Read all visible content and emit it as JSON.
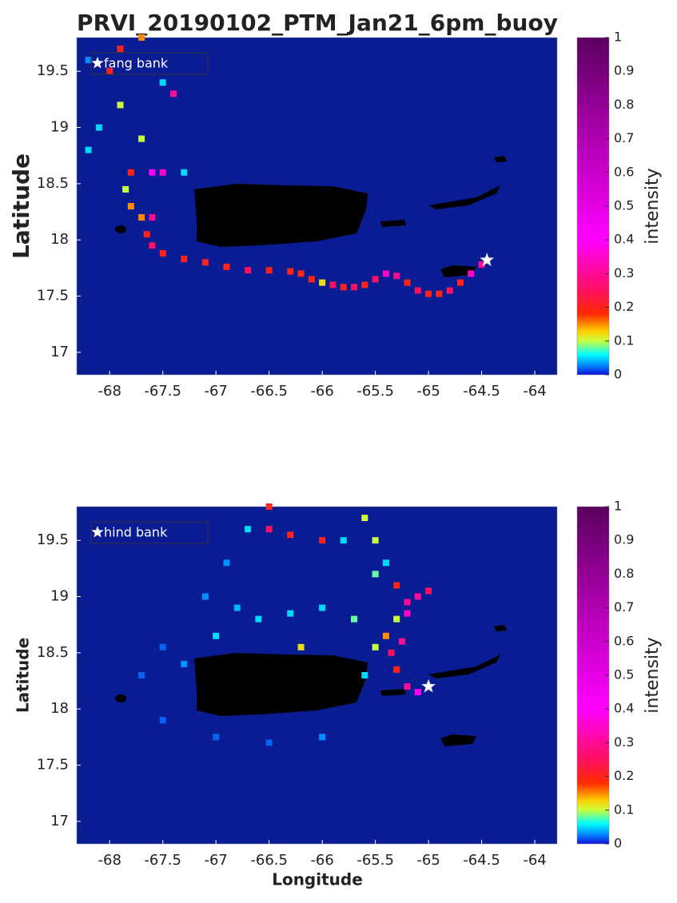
{
  "chart_data": [
    {
      "type": "heatmap",
      "title": "PRVI_20190102_PTM_Jan21_6pm_buoy",
      "ylabel": "Latitude",
      "legend": "fang bank",
      "marker": [
        -64.45,
        17.82
      ],
      "xlim": [
        -68.31,
        -63.79
      ],
      "ylim": [
        16.8,
        19.8
      ],
      "xticks": [
        -68,
        -67.5,
        -67,
        -66.5,
        -66,
        -65.5,
        -65,
        -64.5,
        -64
      ],
      "yticks": [
        17,
        17.5,
        18,
        18.5,
        19,
        19.5
      ],
      "colorbar": {
        "label": "intensity",
        "clim": [
          0,
          1
        ],
        "ticks": [
          0,
          0.1,
          0.2,
          0.3,
          0.4,
          0.5,
          0.6,
          0.7,
          0.8,
          0.9,
          1
        ]
      },
      "colormap": {
        "stops": [
          0,
          0.03,
          0.06,
          0.1,
          0.13,
          0.18,
          0.25,
          0.4,
          0.7,
          1
        ],
        "colors": [
          "#1010d8",
          "#0090ff",
          "#00ffff",
          "#c8ff40",
          "#ffcc00",
          "#ff2a00",
          "#ff1060",
          "#ff00ff",
          "#b000b0",
          "#5a0060"
        ]
      },
      "points": {
        "lon": [
          -64.5,
          -64.6,
          -64.7,
          -64.8,
          -64.9,
          -65.0,
          -65.1,
          -65.2,
          -65.3,
          -65.4,
          -65.5,
          -65.6,
          -65.7,
          -65.8,
          -65.9,
          -66.0,
          -66.1,
          -66.2,
          -66.3,
          -66.5,
          -66.7,
          -66.9,
          -67.1,
          -67.3,
          -67.5,
          -67.6,
          -67.65,
          -67.7,
          -67.8,
          -67.85,
          -67.8,
          -67.6,
          -67.5,
          -67.7,
          -67.9,
          -68.0,
          -67.9,
          -67.7,
          -67.5,
          -67.4,
          -68.2,
          -68.1,
          -67.6,
          -67.3,
          -68.2
        ],
        "lat": [
          17.78,
          17.7,
          17.62,
          17.55,
          17.52,
          17.52,
          17.55,
          17.62,
          17.68,
          17.7,
          17.65,
          17.6,
          17.58,
          17.58,
          17.6,
          17.62,
          17.65,
          17.7,
          17.72,
          17.73,
          17.73,
          17.76,
          17.8,
          17.83,
          17.88,
          17.95,
          18.05,
          18.2,
          18.3,
          18.45,
          18.6,
          18.6,
          18.6,
          18.9,
          19.2,
          19.5,
          19.7,
          19.8,
          19.4,
          19.3,
          18.8,
          19.0,
          18.2,
          18.6,
          19.6
        ],
        "intensity": [
          0.3,
          0.35,
          0.2,
          0.25,
          0.2,
          0.2,
          0.25,
          0.2,
          0.3,
          0.35,
          0.25,
          0.2,
          0.25,
          0.2,
          0.25,
          0.12,
          0.2,
          0.2,
          0.2,
          0.2,
          0.25,
          0.2,
          0.2,
          0.2,
          0.2,
          0.25,
          0.2,
          0.15,
          0.15,
          0.1,
          0.2,
          0.4,
          0.35,
          0.1,
          0.1,
          0.2,
          0.2,
          0.15,
          0.05,
          0.3,
          0.05,
          0.05,
          0.3,
          0.05,
          0.03
        ]
      }
    },
    {
      "type": "heatmap",
      "xlabel": "Longitude",
      "ylabel": "Latitude",
      "legend": "hind bank",
      "marker": [
        -65.0,
        18.2
      ],
      "xlim": [
        -68.31,
        -63.79
      ],
      "ylim": [
        16.8,
        19.8
      ],
      "xticks": [
        -68,
        -67.5,
        -67,
        -66.5,
        -66,
        -65.5,
        -65,
        -64.5,
        -64
      ],
      "yticks": [
        17,
        17.5,
        18,
        18.5,
        19,
        19.5
      ],
      "colorbar": {
        "label": "intensity",
        "clim": [
          0,
          1
        ],
        "ticks": [
          0,
          0.1,
          0.2,
          0.3,
          0.4,
          0.5,
          0.6,
          0.7,
          0.8,
          0.9,
          1
        ]
      },
      "colormap": {
        "stops": [
          0,
          0.03,
          0.06,
          0.1,
          0.13,
          0.18,
          0.25,
          0.4,
          0.7,
          1
        ],
        "colors": [
          "#1010d8",
          "#0090ff",
          "#00ffff",
          "#c8ff40",
          "#ffcc00",
          "#ff2a00",
          "#ff1060",
          "#ff00ff",
          "#b000b0",
          "#5a0060"
        ]
      },
      "points": {
        "lon": [
          -65.1,
          -65.2,
          -65.3,
          -65.35,
          -65.4,
          -65.3,
          -65.2,
          -65.1,
          -65.0,
          -65.3,
          -65.4,
          -65.5,
          -65.6,
          -65.8,
          -66.0,
          -66.3,
          -66.5,
          -66.5,
          -66.7,
          -66.9,
          -67.1,
          -66.0,
          -65.7,
          -66.3,
          -66.6,
          -66.8,
          -67.0,
          -67.3,
          -67.5,
          -67.7,
          -67.5,
          -67.0,
          -66.5,
          -66.0,
          -65.6,
          -65.5,
          -65.5,
          -66.2,
          -65.2,
          -65.25
        ],
        "lat": [
          18.15,
          18.2,
          18.35,
          18.5,
          18.65,
          18.8,
          18.95,
          19.0,
          19.05,
          19.1,
          19.3,
          19.5,
          19.7,
          19.5,
          19.5,
          19.55,
          19.6,
          19.8,
          19.6,
          19.3,
          19.0,
          18.9,
          18.8,
          18.85,
          18.8,
          18.9,
          18.65,
          18.4,
          18.55,
          18.3,
          17.9,
          17.75,
          17.7,
          17.75,
          18.3,
          18.55,
          19.2,
          18.55,
          18.85,
          18.6
        ],
        "intensity": [
          0.4,
          0.3,
          0.2,
          0.25,
          0.15,
          0.1,
          0.3,
          0.3,
          0.25,
          0.2,
          0.05,
          0.1,
          0.1,
          0.05,
          0.2,
          0.2,
          0.25,
          0.2,
          0.05,
          0.03,
          0.03,
          0.05,
          0.08,
          0.05,
          0.05,
          0.04,
          0.05,
          0.03,
          0.02,
          0.02,
          0.02,
          0.02,
          0.02,
          0.03,
          0.05,
          0.1,
          0.08,
          0.12,
          0.35,
          0.3
        ]
      }
    }
  ]
}
